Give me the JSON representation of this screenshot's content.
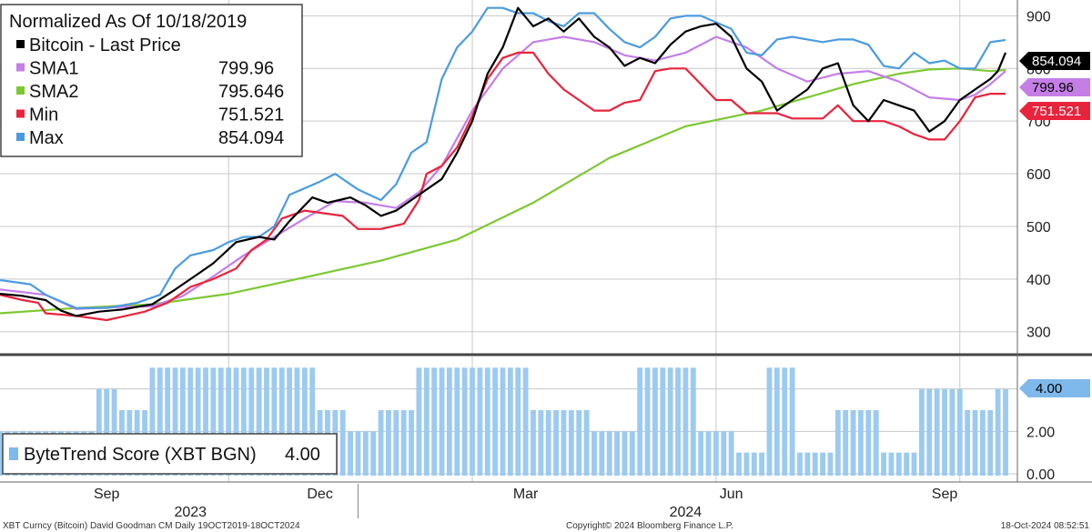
{
  "chart_data": [
    {
      "type": "line",
      "title": "Normalized As Of 10/18/2019",
      "ylim": [
        265,
        930
      ],
      "yticks": [
        300,
        400,
        500,
        600,
        700,
        800,
        900
      ],
      "x_tick_labels": [
        "Sep",
        "Dec",
        "Mar",
        "Jun",
        "Sep"
      ],
      "year_labels": [
        "2023",
        "2024"
      ],
      "grid": true,
      "legend_position": "top-left",
      "legend": [
        {
          "name": "Bitcoin - Last Price",
          "value": "",
          "color": "#000000"
        },
        {
          "name": "SMA1",
          "value": "799.96",
          "color": "#c47ee6"
        },
        {
          "name": "SMA2",
          "value": "795.646",
          "color": "#7dc832"
        },
        {
          "name": "Min",
          "value": "751.521",
          "color": "#e8243c"
        },
        {
          "name": "Max",
          "value": "854.094",
          "color": "#4a9be0"
        }
      ],
      "tags": [
        {
          "text": "854.094",
          "value": 854.094,
          "bg": "#000000",
          "fg": "#ffffff"
        },
        {
          "text": "799.96",
          "value": 799.96,
          "bg": "#c47ee6",
          "fg": "#000000"
        },
        {
          "text": "751.521",
          "value": 751.521,
          "bg": "#e8243c",
          "fg": "#ffffff"
        }
      ],
      "series": [
        {
          "name": "Bitcoin - Last Price",
          "color": "#000000",
          "points": [
            [
              0,
              372
            ],
            [
              3,
              368
            ],
            [
              6,
              360
            ],
            [
              8,
              340
            ],
            [
              10,
              330
            ],
            [
              13,
              338
            ],
            [
              16,
              342
            ],
            [
              20,
              352
            ],
            [
              23,
              380
            ],
            [
              26,
              410
            ],
            [
              28,
              430
            ],
            [
              31,
              470
            ],
            [
              34,
              480
            ],
            [
              36,
              475
            ],
            [
              38,
              510
            ],
            [
              41,
              555
            ],
            [
              43,
              545
            ],
            [
              46,
              555
            ],
            [
              48,
              540
            ],
            [
              50,
              520
            ],
            [
              52,
              530
            ],
            [
              55,
              560
            ],
            [
              58,
              590
            ],
            [
              60,
              640
            ],
            [
              62,
              700
            ],
            [
              64,
              790
            ],
            [
              66,
              840
            ],
            [
              68,
              915
            ],
            [
              70,
              880
            ],
            [
              72,
              895
            ],
            [
              74,
              870
            ],
            [
              76,
              895
            ],
            [
              78,
              860
            ],
            [
              80,
              840
            ],
            [
              82,
              805
            ],
            [
              84,
              820
            ],
            [
              86,
              810
            ],
            [
              88,
              845
            ],
            [
              90,
              870
            ],
            [
              92,
              880
            ],
            [
              94,
              885
            ],
            [
              96,
              860
            ],
            [
              98,
              800
            ],
            [
              100,
              775
            ],
            [
              102,
              720
            ],
            [
              104,
              740
            ],
            [
              106,
              760
            ],
            [
              108,
              800
            ],
            [
              110,
              810
            ],
            [
              112,
              730
            ],
            [
              114,
              700
            ],
            [
              116,
              740
            ],
            [
              118,
              730
            ],
            [
              120,
              720
            ],
            [
              122,
              680
            ],
            [
              124,
              700
            ],
            [
              126,
              740
            ],
            [
              128,
              760
            ],
            [
              130,
              780
            ],
            [
              131,
              795
            ],
            [
              132,
              830
            ]
          ]
        },
        {
          "name": "SMA1",
          "color": "#c47ee6",
          "points": [
            [
              0,
              380
            ],
            [
              6,
              370
            ],
            [
              10,
              343
            ],
            [
              16,
              347
            ],
            [
              20,
              348
            ],
            [
              24,
              368
            ],
            [
              28,
              405
            ],
            [
              32,
              445
            ],
            [
              36,
              480
            ],
            [
              40,
              515
            ],
            [
              44,
              548
            ],
            [
              48,
              545
            ],
            [
              52,
              535
            ],
            [
              55,
              565
            ],
            [
              58,
              615
            ],
            [
              62,
              720
            ],
            [
              66,
              800
            ],
            [
              70,
              850
            ],
            [
              74,
              860
            ],
            [
              78,
              850
            ],
            [
              82,
              825
            ],
            [
              86,
              815
            ],
            [
              90,
              830
            ],
            [
              94,
              860
            ],
            [
              98,
              840
            ],
            [
              102,
              800
            ],
            [
              106,
              775
            ],
            [
              110,
              790
            ],
            [
              114,
              795
            ],
            [
              118,
              775
            ],
            [
              122,
              745
            ],
            [
              126,
              740
            ],
            [
              128,
              750
            ],
            [
              130,
              770
            ],
            [
              132,
              795
            ]
          ]
        },
        {
          "name": "SMA2",
          "color": "#7dc832",
          "points": [
            [
              0,
              335
            ],
            [
              10,
              345
            ],
            [
              20,
              352
            ],
            [
              30,
              372
            ],
            [
              40,
              403
            ],
            [
              50,
              435
            ],
            [
              60,
              475
            ],
            [
              70,
              545
            ],
            [
              80,
              630
            ],
            [
              90,
              690
            ],
            [
              100,
              720
            ],
            [
              106,
              745
            ],
            [
              112,
              770
            ],
            [
              118,
              790
            ],
            [
              122,
              798
            ],
            [
              126,
              800
            ],
            [
              130,
              795
            ],
            [
              132,
              797
            ]
          ]
        },
        {
          "name": "Min",
          "color": "#e8243c",
          "points": [
            [
              0,
              370
            ],
            [
              3,
              360
            ],
            [
              5,
              355
            ],
            [
              6,
              335
            ],
            [
              10,
              330
            ],
            [
              14,
              322
            ],
            [
              19,
              338
            ],
            [
              22,
              355
            ],
            [
              25,
              385
            ],
            [
              28,
              400
            ],
            [
              31,
              420
            ],
            [
              33,
              455
            ],
            [
              35,
              475
            ],
            [
              37,
              515
            ],
            [
              40,
              530
            ],
            [
              45,
              520
            ],
            [
              47,
              495
            ],
            [
              50,
              495
            ],
            [
              53,
              505
            ],
            [
              55,
              550
            ],
            [
              56,
              600
            ],
            [
              58,
              615
            ],
            [
              60,
              650
            ],
            [
              62,
              710
            ],
            [
              64,
              780
            ],
            [
              66,
              820
            ],
            [
              68,
              830
            ],
            [
              70,
              830
            ],
            [
              72,
              790
            ],
            [
              74,
              760
            ],
            [
              76,
              740
            ],
            [
              78,
              720
            ],
            [
              80,
              720
            ],
            [
              82,
              735
            ],
            [
              84,
              740
            ],
            [
              86,
              795
            ],
            [
              88,
              800
            ],
            [
              90,
              800
            ],
            [
              92,
              770
            ],
            [
              94,
              740
            ],
            [
              96,
              740
            ],
            [
              98,
              715
            ],
            [
              102,
              715
            ],
            [
              104,
              705
            ],
            [
              106,
              705
            ],
            [
              108,
              705
            ],
            [
              110,
              730
            ],
            [
              112,
              700
            ],
            [
              114,
              700
            ],
            [
              116,
              700
            ],
            [
              118,
              690
            ],
            [
              120,
              675
            ],
            [
              122,
              665
            ],
            [
              124,
              665
            ],
            [
              126,
              700
            ],
            [
              128,
              745
            ],
            [
              130,
              752
            ],
            [
              132,
              752
            ]
          ]
        },
        {
          "name": "Max",
          "color": "#4a9be0",
          "points": [
            [
              0,
              398
            ],
            [
              4,
              390
            ],
            [
              6,
              370
            ],
            [
              10,
              345
            ],
            [
              14,
              345
            ],
            [
              18,
              355
            ],
            [
              21,
              370
            ],
            [
              23,
              420
            ],
            [
              25,
              445
            ],
            [
              28,
              455
            ],
            [
              30,
              470
            ],
            [
              32,
              480
            ],
            [
              34,
              480
            ],
            [
              36,
              500
            ],
            [
              38,
              560
            ],
            [
              42,
              585
            ],
            [
              44,
              600
            ],
            [
              47,
              570
            ],
            [
              50,
              550
            ],
            [
              52,
              580
            ],
            [
              54,
              640
            ],
            [
              56,
              660
            ],
            [
              58,
              780
            ],
            [
              60,
              840
            ],
            [
              62,
              870
            ],
            [
              64,
              915
            ],
            [
              66,
              915
            ],
            [
              68,
              905
            ],
            [
              70,
              905
            ],
            [
              72,
              890
            ],
            [
              74,
              880
            ],
            [
              76,
              905
            ],
            [
              78,
              905
            ],
            [
              80,
              875
            ],
            [
              82,
              850
            ],
            [
              84,
              840
            ],
            [
              86,
              860
            ],
            [
              88,
              895
            ],
            [
              90,
              900
            ],
            [
              92,
              900
            ],
            [
              96,
              875
            ],
            [
              98,
              830
            ],
            [
              100,
              825
            ],
            [
              102,
              855
            ],
            [
              104,
              860
            ],
            [
              106,
              855
            ],
            [
              108,
              850
            ],
            [
              110,
              855
            ],
            [
              112,
              855
            ],
            [
              114,
              845
            ],
            [
              116,
              805
            ],
            [
              118,
              800
            ],
            [
              120,
              830
            ],
            [
              122,
              810
            ],
            [
              124,
              815
            ],
            [
              126,
              800
            ],
            [
              128,
              800
            ],
            [
              130,
              850
            ],
            [
              132,
              854
            ]
          ]
        }
      ],
      "x_categories_count": 133
    },
    {
      "type": "bar",
      "legend": [
        {
          "name": "ByteTrend Score (XBT BGN)",
          "value": "4.00",
          "color": "#7fb8ea"
        }
      ],
      "ylim": [
        -0.3,
        5.4
      ],
      "yticks": [
        "0.00",
        "2.00",
        "4.00"
      ],
      "tag": {
        "text": "4.00",
        "value": 4.0,
        "bg": "#7fb8ea",
        "fg": "#000000"
      },
      "segments": [
        {
          "start": 0,
          "end": 8,
          "value": 2
        },
        {
          "start": 8,
          "end": 13,
          "value": 2
        },
        {
          "start": 13,
          "end": 16,
          "value": 4
        },
        {
          "start": 16,
          "end": 20,
          "value": 3
        },
        {
          "start": 20,
          "end": 42,
          "value": 5
        },
        {
          "start": 42,
          "end": 46,
          "value": 3
        },
        {
          "start": 46,
          "end": 50,
          "value": 2
        },
        {
          "start": 50,
          "end": 55,
          "value": 3
        },
        {
          "start": 55,
          "end": 70,
          "value": 5
        },
        {
          "start": 70,
          "end": 78,
          "value": 3
        },
        {
          "start": 78,
          "end": 84,
          "value": 2
        },
        {
          "start": 84,
          "end": 92,
          "value": 5
        },
        {
          "start": 92,
          "end": 97,
          "value": 2
        },
        {
          "start": 97,
          "end": 101,
          "value": 1
        },
        {
          "start": 101,
          "end": 105,
          "value": 5
        },
        {
          "start": 105,
          "end": 110,
          "value": 1
        },
        {
          "start": 110,
          "end": 116,
          "value": 3
        },
        {
          "start": 116,
          "end": 121,
          "value": 1
        },
        {
          "start": 121,
          "end": 127,
          "value": 4
        },
        {
          "start": 127,
          "end": 131,
          "value": 3
        },
        {
          "start": 131,
          "end": 133,
          "value": 4
        }
      ]
    }
  ],
  "footer": {
    "left": "XBT Curncy (Bitcoin) David Goodman CM  Daily 19OCT2019-18OCT2024",
    "center": "Copyright© 2024 Bloomberg Finance L.P.",
    "right": "18-Oct-2024 08:52:51"
  }
}
